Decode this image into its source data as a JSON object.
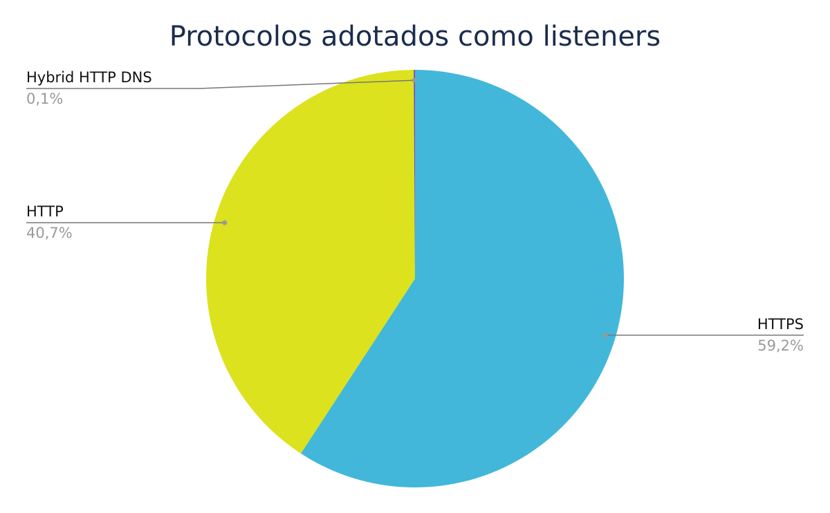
{
  "chart_data": {
    "type": "pie",
    "title": "Protocolos adotados como listeners",
    "categories": [
      "HTTPS",
      "HTTP",
      "Hybrid HTTP DNS"
    ],
    "values": [
      59.2,
      40.7,
      0.1
    ],
    "value_labels": [
      "59,2%",
      "40,7%",
      "0,1%"
    ],
    "colors": [
      "#42b7da",
      "#dce21e",
      "#8e44ad"
    ]
  }
}
